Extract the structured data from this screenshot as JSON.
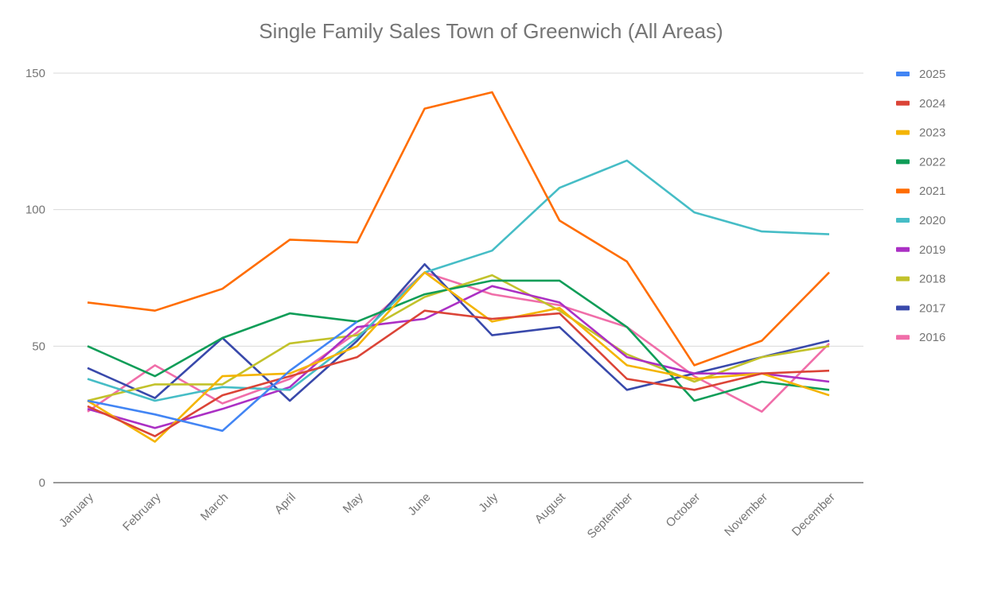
{
  "chart_data": {
    "type": "line",
    "title": "Single Family Sales Town of Greenwich (All Areas)",
    "xlabel": "",
    "ylabel": "",
    "ylim": [
      0,
      150
    ],
    "yticks": [
      0,
      50,
      100,
      150
    ],
    "grid": true,
    "legend_position": "right",
    "categories": [
      "January",
      "February",
      "March",
      "April",
      "May",
      "June",
      "July",
      "August",
      "September",
      "October",
      "November",
      "December"
    ],
    "series": [
      {
        "name": "2025",
        "color": "#4285f4",
        "values": [
          30,
          25,
          19,
          41,
          59,
          null,
          null,
          null,
          null,
          null,
          null,
          null
        ]
      },
      {
        "name": "2024",
        "color": "#db4437",
        "values": [
          28,
          17,
          32,
          39,
          46,
          63,
          60,
          62,
          38,
          34,
          40,
          41
        ]
      },
      {
        "name": "2023",
        "color": "#f4b400",
        "values": [
          30,
          15,
          39,
          40,
          50,
          77,
          59,
          64,
          43,
          38,
          40,
          32
        ]
      },
      {
        "name": "2022",
        "color": "#0f9d58",
        "values": [
          50,
          39,
          53,
          62,
          59,
          69,
          74,
          74,
          57,
          30,
          37,
          34
        ]
      },
      {
        "name": "2021",
        "color": "#ff6d01",
        "values": [
          66,
          63,
          71,
          89,
          88,
          137,
          143,
          96,
          81,
          43,
          52,
          77
        ]
      },
      {
        "name": "2020",
        "color": "#46bdc6",
        "values": [
          38,
          30,
          35,
          34,
          53,
          77,
          85,
          108,
          118,
          99,
          92,
          91
        ]
      },
      {
        "name": "2019",
        "color": "#ab30c4",
        "values": [
          27,
          20,
          27,
          35,
          57,
          60,
          72,
          66,
          46,
          40,
          40,
          37
        ]
      },
      {
        "name": "2018",
        "color": "#c2c22b",
        "values": [
          30,
          36,
          36,
          51,
          54,
          68,
          76,
          63,
          47,
          37,
          46,
          50
        ]
      },
      {
        "name": "2017",
        "color": "#3949ab",
        "values": [
          42,
          31,
          53,
          30,
          52,
          80,
          54,
          57,
          34,
          40,
          46,
          52
        ]
      },
      {
        "name": "2016",
        "color": "#f06ea9",
        "values": [
          26,
          43,
          29,
          38,
          55,
          77,
          69,
          65,
          57,
          39,
          26,
          51
        ]
      }
    ]
  }
}
